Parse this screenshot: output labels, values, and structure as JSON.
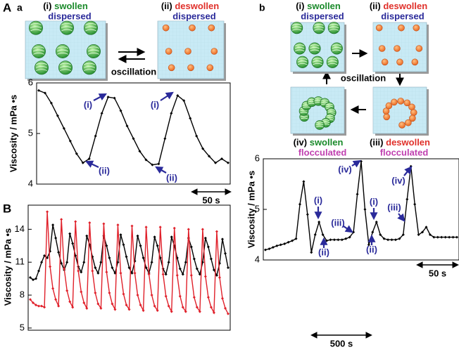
{
  "panel_labels": [
    "A",
    "a",
    "B",
    "b"
  ],
  "diagrams": {
    "a": {
      "states": [
        {
          "index": "(i)",
          "state": "swollen",
          "dispersion": "dispersed"
        },
        {
          "index": "(ii)",
          "state": "deswollen",
          "dispersion": "dispersed"
        }
      ],
      "oscillation": "oscillation"
    },
    "b": {
      "states": [
        {
          "index": "(i)",
          "state": "swollen",
          "dispersion": "dispersed"
        },
        {
          "index": "(ii)",
          "state": "deswollen",
          "dispersion": "dispersed"
        },
        {
          "index": "(iii)",
          "state": "deswollen",
          "dispersion": "flocculated"
        },
        {
          "index": "(iv)",
          "state": "swollen",
          "dispersion": "flocculated"
        }
      ],
      "oscillation": "oscillation"
    }
  },
  "chart_data": [
    {
      "type": "line",
      "y_label": "Viscosity / mPa •s",
      "ylim": [
        4,
        6
      ],
      "yticks": [
        4,
        5,
        6
      ],
      "scale_bar": "50 s",
      "annotations": [
        "(i)",
        "(i)",
        "(ii)",
        "(ii)"
      ],
      "series": [
        {
          "color": "#000000",
          "values": [
            5.85,
            5.8,
            5.6,
            5.35,
            5.1,
            4.85,
            4.6,
            4.42,
            4.5,
            4.95,
            5.4,
            5.72,
            5.7,
            5.45,
            5.15,
            4.9,
            4.65,
            4.48,
            4.38,
            4.4,
            4.9,
            5.4,
            5.75,
            5.65,
            5.3,
            4.95,
            4.7,
            4.55,
            4.42,
            4.5,
            4.42
          ]
        }
      ]
    },
    {
      "type": "line",
      "y_label": "Viscosity / mPa •s",
      "ylim": [
        4.8,
        16.2
      ],
      "yticks": [
        5,
        8,
        11,
        14
      ],
      "scale_bar": "500 s",
      "annotations": [],
      "series": [
        {
          "color": "#000000",
          "values": [
            9.6,
            9.4,
            9.5,
            10.2,
            11.0,
            11.6,
            11.4,
            12.0,
            14.4,
            13.2,
            11.9,
            10.9,
            10.3,
            11.0,
            13.6,
            12.7,
            11.6,
            10.6,
            10.1,
            11.0,
            13.4,
            12.6,
            11.5,
            10.5,
            10.0,
            11.0,
            13.4,
            12.5,
            11.4,
            10.5,
            10.0,
            11.0,
            13.5,
            12.6,
            11.5,
            10.5,
            10.0,
            11.1,
            13.4,
            12.5,
            11.4,
            10.5,
            10.0,
            11.0,
            13.3,
            12.5,
            11.4,
            10.4,
            9.9,
            11.0,
            13.3,
            12.5,
            11.4,
            10.4,
            9.9,
            11.0,
            13.2,
            12.4,
            11.3,
            10.4,
            9.9,
            11.0,
            13.2,
            12.4,
            11.3,
            10.3,
            9.8,
            10.9,
            13.1,
            11.8,
            10.5
          ]
        },
        {
          "color": "#e0202a",
          "values": [
            7.6,
            7.3,
            7.1,
            7.0,
            7.0,
            6.9,
            15.6,
            10.6,
            8.6,
            7.6,
            7.0,
            14.9,
            10.4,
            8.4,
            7.4,
            6.9,
            14.7,
            10.2,
            8.3,
            7.3,
            6.8,
            14.6,
            10.2,
            8.2,
            7.2,
            6.8,
            14.5,
            10.1,
            8.2,
            7.2,
            6.7,
            14.4,
            10.0,
            8.1,
            7.1,
            6.7,
            14.3,
            10.0,
            8.0,
            7.1,
            6.6,
            14.2,
            9.9,
            8.0,
            7.0,
            6.6,
            14.2,
            9.9,
            7.9,
            7.0,
            6.5,
            14.1,
            9.8,
            7.9,
            6.9,
            6.5,
            14.0,
            9.8,
            7.8,
            6.9,
            6.5,
            14.0,
            9.7,
            7.8,
            6.9,
            6.4,
            13.8,
            9.6,
            7.7,
            6.8,
            6.3
          ]
        }
      ]
    },
    {
      "type": "line",
      "y_label": "Viscosity / mPa •s",
      "ylim": [
        4,
        6
      ],
      "yticks": [
        4,
        5,
        6
      ],
      "scale_bar": "50 s",
      "annotations": [
        "(iv)",
        "(i)",
        "(iii)",
        "(ii)",
        "(iv)",
        "(i)",
        "(iii)",
        "(ii)"
      ],
      "series": [
        {
          "color": "#000000",
          "values": [
            4.2,
            4.22,
            4.25,
            4.28,
            4.3,
            4.32,
            4.35,
            4.38,
            4.42,
            5.1,
            5.55,
            4.9,
            4.15,
            4.5,
            4.75,
            4.5,
            4.38,
            4.4,
            4.4,
            4.4,
            4.4,
            4.42,
            4.45,
            4.55,
            5.3,
            5.95,
            5.0,
            4.3,
            4.55,
            4.75,
            4.5,
            4.42,
            4.4,
            4.4,
            4.4,
            4.42,
            4.5,
            5.2,
            5.85,
            5.1,
            4.5,
            4.55,
            4.65,
            4.5,
            4.45,
            4.45,
            4.45,
            4.45,
            4.45,
            4.45,
            4.45
          ]
        }
      ]
    }
  ]
}
